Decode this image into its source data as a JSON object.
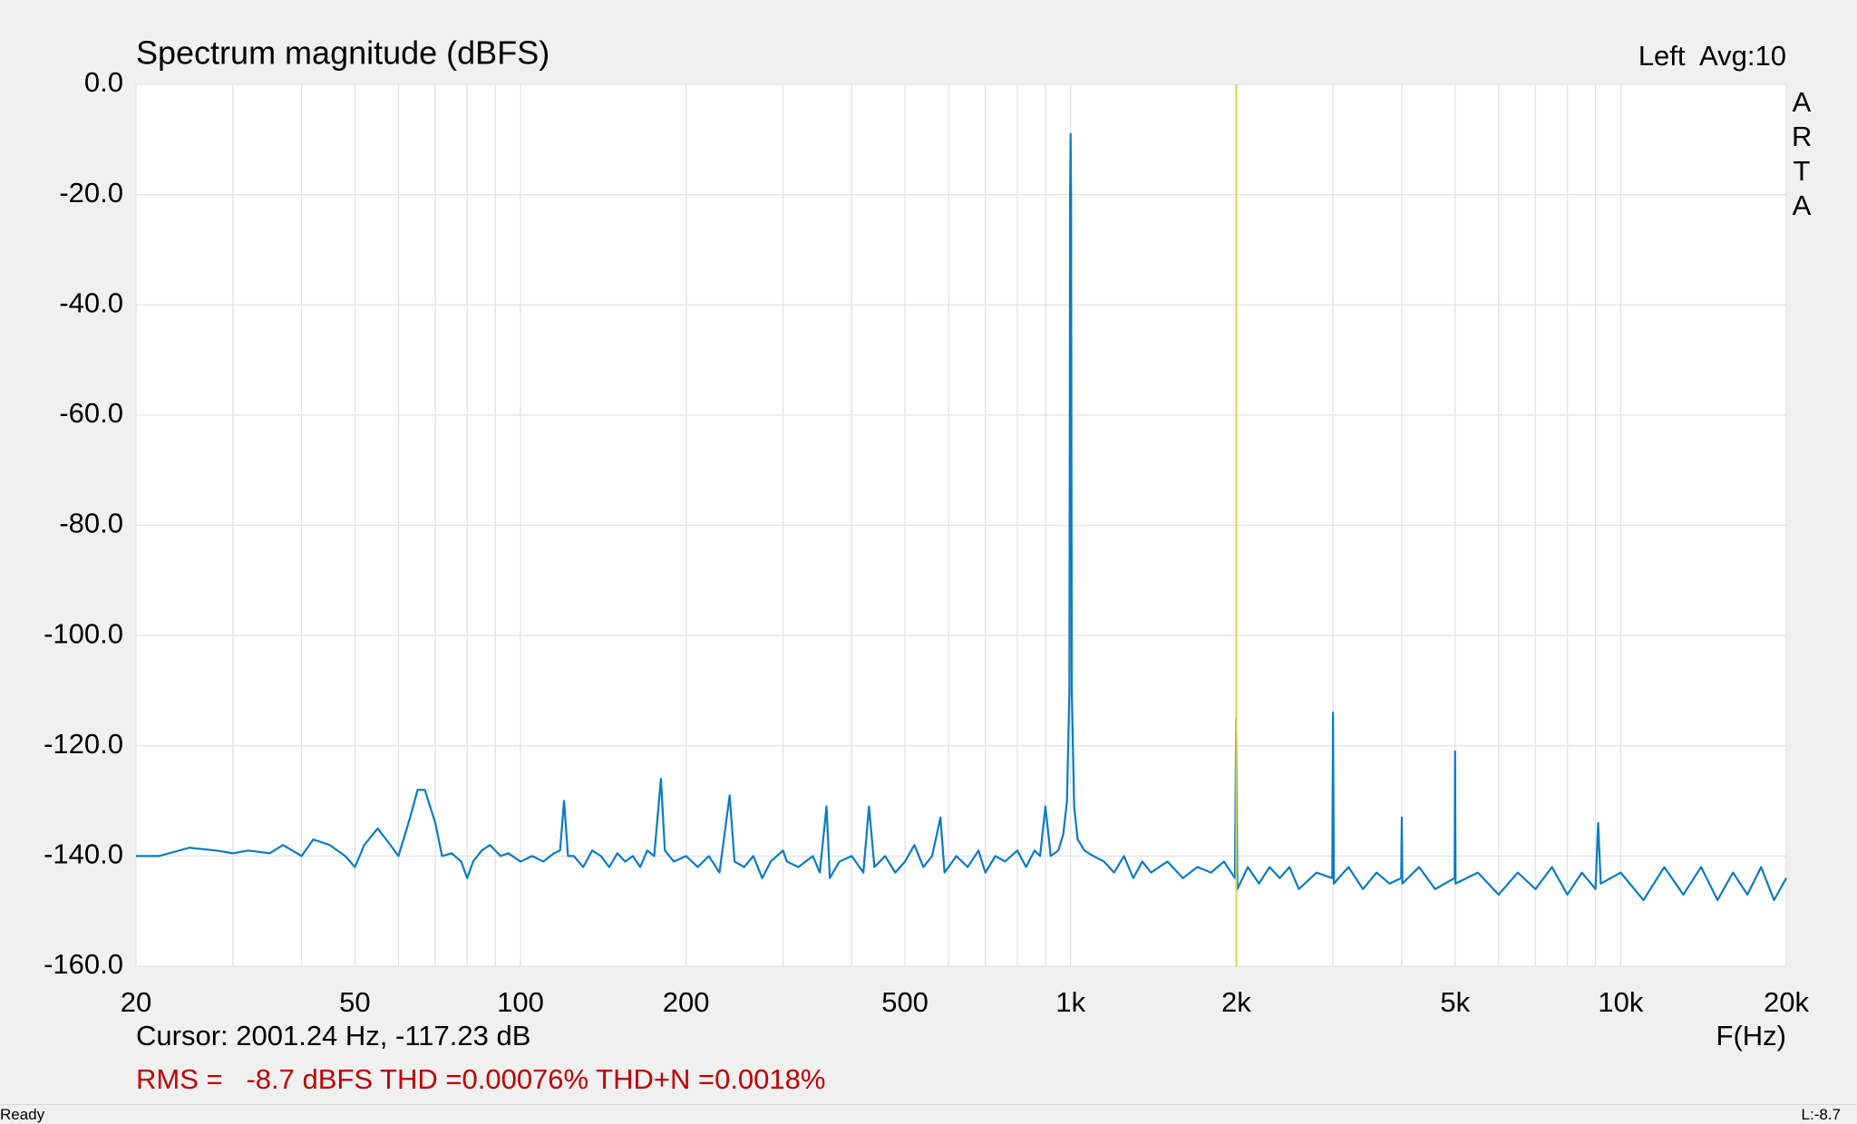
{
  "chart_data": {
    "type": "line",
    "title": "Spectrum magnitude (dBFS)",
    "channel_label": "Left  Avg:10",
    "brand": "ARTA",
    "xlabel": "F(Hz)",
    "cursor_text": "Cursor: 2001.24 Hz, -117.23 dB",
    "measurement_text": "RMS =   -8.7 dBFS THD =0.00076% THD+N =0.0018%",
    "cursor_x": 2001.24,
    "cursor_color": "#d6d64a",
    "xscale": "log",
    "xlim": [
      20,
      20000
    ],
    "xticks": [
      20,
      50,
      100,
      200,
      500,
      {
        "value": 1000,
        "label": "1k"
      },
      {
        "value": 2000,
        "label": "2k"
      },
      {
        "value": 5000,
        "label": "5k"
      },
      {
        "value": 10000,
        "label": "10k"
      },
      {
        "value": 20000,
        "label": "20k"
      }
    ],
    "xminorticks": [
      30,
      40,
      60,
      70,
      80,
      90,
      300,
      400,
      600,
      700,
      800,
      900,
      3000,
      4000,
      6000,
      7000,
      8000,
      9000
    ],
    "ylim": [
      -160,
      0
    ],
    "yticks": [
      {
        "value": 0,
        "label": "0.0"
      },
      {
        "value": -20,
        "label": "-20.0"
      },
      {
        "value": -40,
        "label": "-40.0"
      },
      {
        "value": -60,
        "label": "-60.0"
      },
      {
        "value": -80,
        "label": "-80.0"
      },
      {
        "value": -100,
        "label": "-100.0"
      },
      {
        "value": -120,
        "label": "-120.0"
      },
      {
        "value": -140,
        "label": "-140.0"
      },
      {
        "value": -160,
        "label": "-160.0"
      }
    ],
    "grid": true,
    "series": [
      {
        "name": "Left",
        "color": "#0a7bc4",
        "x": [
          20,
          22,
          25,
          28,
          30,
          32,
          35,
          37,
          40,
          42,
          45,
          48,
          50,
          52,
          55,
          57,
          60,
          63,
          65,
          67,
          70,
          72,
          75,
          78,
          80,
          82,
          85,
          88,
          92,
          95,
          100,
          105,
          110,
          115,
          118,
          120,
          122,
          125,
          130,
          135,
          140,
          145,
          150,
          155,
          160,
          165,
          170,
          175,
          180,
          183,
          190,
          200,
          210,
          220,
          230,
          240,
          245,
          255,
          265,
          275,
          285,
          300,
          305,
          320,
          340,
          350,
          360,
          365,
          380,
          400,
          420,
          430,
          440,
          460,
          480,
          500,
          520,
          540,
          560,
          580,
          590,
          620,
          650,
          680,
          700,
          730,
          760,
          800,
          830,
          860,
          880,
          900,
          920,
          950,
          970,
          985,
          995,
          998,
          1000,
          1002,
          1005,
          1015,
          1030,
          1060,
          1100,
          1150,
          1200,
          1250,
          1300,
          1350,
          1400,
          1500,
          1600,
          1700,
          1800,
          1900,
          1990,
          2000,
          2010,
          2100,
          2200,
          2300,
          2400,
          2500,
          2600,
          2800,
          2990,
          3000,
          3010,
          3200,
          3400,
          3600,
          3800,
          3990,
          4000,
          4010,
          4300,
          4600,
          4990,
          5000,
          5010,
          5500,
          6000,
          6500,
          7000,
          7500,
          8000,
          8500,
          9000,
          9100,
          9200,
          10000,
          11000,
          12000,
          13000,
          14000,
          15000,
          16000,
          17000,
          18000,
          19000,
          20000
        ],
        "values": [
          -140,
          -140,
          -138.5,
          -139,
          -139.5,
          -139,
          -139.5,
          -138,
          -140,
          -137,
          -138,
          -140,
          -142,
          -138,
          -135,
          -137,
          -140,
          -133,
          -128,
          -128,
          -134,
          -140,
          -139.5,
          -141,
          -144,
          -141,
          -139,
          -138,
          -140,
          -139.5,
          -141,
          -140,
          -141,
          -139.5,
          -139,
          -130,
          -140,
          -140,
          -142,
          -139,
          -140,
          -142,
          -139.5,
          -141,
          -140,
          -142,
          -139,
          -140,
          -126,
          -139,
          -141,
          -140,
          -142,
          -140,
          -143,
          -129,
          -141,
          -142,
          -140,
          -144,
          -141,
          -139,
          -141,
          -142,
          -140,
          -143,
          -131,
          -144,
          -141,
          -140,
          -143,
          -131,
          -142,
          -140,
          -143,
          -141,
          -138,
          -142,
          -140,
          -133,
          -143,
          -140,
          -142,
          -139,
          -143,
          -140,
          -141,
          -139,
          -142,
          -139,
          -140,
          -131,
          -140,
          -139,
          -136,
          -130,
          -110,
          -20,
          -9,
          -20,
          -110,
          -131,
          -137,
          -139,
          -140,
          -141,
          -143,
          -140,
          -144,
          -141,
          -143,
          -141,
          -144,
          -142,
          -143,
          -141,
          -144,
          -115,
          -146,
          -142,
          -145,
          -142,
          -144,
          -142,
          -146,
          -143,
          -144,
          -114,
          -145,
          -142,
          -146,
          -143,
          -145,
          -144,
          -133,
          -145,
          -142,
          -146,
          -144,
          -121,
          -145,
          -143,
          -147,
          -143,
          -146,
          -142,
          -147,
          -143,
          -146,
          -134,
          -145,
          -143,
          -148,
          -142,
          -147,
          -142,
          -148,
          -143,
          -147,
          -142,
          -148,
          -144
        ]
      }
    ]
  },
  "status_bar": {
    "left": "Ready",
    "right": "L:-8.7"
  }
}
